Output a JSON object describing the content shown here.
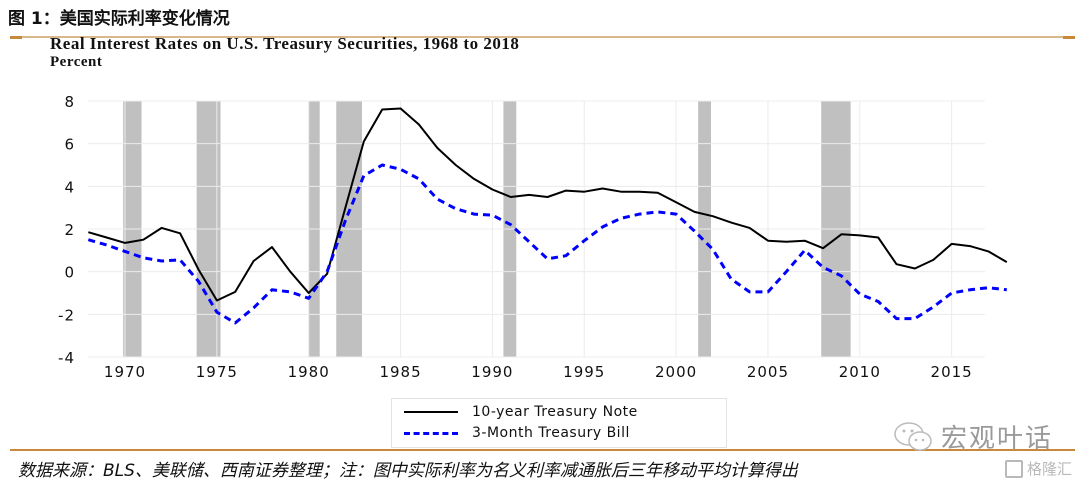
{
  "figure": {
    "title": "图 1：美国实际利率变化情况",
    "source_note": "数据来源：BLS、美联储、西南证券整理；注：图中实际利率为名义利率减通胀后三年移动平均计算得出",
    "watermark": "宏观叶话",
    "brand": "格隆汇",
    "accent_color": "#c8893a"
  },
  "chart_data": {
    "type": "line",
    "title": "Real Interest Rates on U.S. Treasury Securities, 1968 to 2018",
    "ylabel": "Percent",
    "xlabel": "",
    "ylim": [
      -4,
      8
    ],
    "xlim": [
      1967.5,
      2019.5
    ],
    "yticks": [
      8,
      6,
      4,
      2,
      0,
      -2,
      -4
    ],
    "xticks": [
      1970,
      1975,
      1980,
      1985,
      1990,
      1995,
      2000,
      2005,
      2010,
      2015
    ],
    "grid": true,
    "legend_position": "bottom-center",
    "recessions": [
      [
        1969.9,
        1970.9
      ],
      [
        1973.9,
        1975.2
      ],
      [
        1980.0,
        1980.6
      ],
      [
        1981.5,
        1982.9
      ],
      [
        1990.6,
        1991.3
      ],
      [
        2001.2,
        2001.9
      ],
      [
        2007.9,
        2009.5
      ]
    ],
    "x": [
      1968,
      1969,
      1970,
      1971,
      1972,
      1973,
      1974,
      1975,
      1976,
      1977,
      1978,
      1979,
      1980,
      1981,
      1982,
      1983,
      1984,
      1985,
      1986,
      1987,
      1988,
      1989,
      1990,
      1991,
      1992,
      1993,
      1994,
      1995,
      1996,
      1997,
      1998,
      1999,
      2000,
      2001,
      2002,
      2003,
      2004,
      2005,
      2006,
      2007,
      2008,
      2009,
      2010,
      2011,
      2012,
      2013,
      2014,
      2015,
      2016,
      2017,
      2018
    ],
    "series": [
      {
        "name": "10-year Treasury Note",
        "color": "#000000",
        "style": "solid",
        "values": [
          1.85,
          1.6,
          1.35,
          1.5,
          2.05,
          1.8,
          0.1,
          -1.35,
          -0.95,
          0.5,
          1.15,
          0.0,
          -1.0,
          -0.1,
          3.0,
          6.1,
          7.6,
          7.65,
          6.9,
          5.8,
          5.0,
          4.35,
          3.85,
          3.5,
          3.6,
          3.5,
          3.8,
          3.75,
          3.9,
          3.75,
          3.75,
          3.7,
          3.25,
          2.8,
          2.6,
          2.3,
          2.05,
          1.45,
          1.4,
          1.45,
          1.1,
          1.75,
          1.7,
          1.6,
          0.35,
          0.15,
          0.55,
          1.3,
          1.2,
          0.95,
          0.45
        ]
      },
      {
        "name": "3-Month Treasury Bill",
        "color": "#0000ff",
        "style": "dashed",
        "values": [
          1.5,
          1.25,
          0.95,
          0.65,
          0.5,
          0.55,
          -0.45,
          -1.9,
          -2.4,
          -1.7,
          -0.85,
          -0.95,
          -1.25,
          0.0,
          2.4,
          4.5,
          5.0,
          4.8,
          4.35,
          3.4,
          2.95,
          2.7,
          2.65,
          2.2,
          1.4,
          0.6,
          0.75,
          1.45,
          2.1,
          2.5,
          2.7,
          2.8,
          2.7,
          1.9,
          1.05,
          -0.35,
          -0.95,
          -0.95,
          0.0,
          1.0,
          0.2,
          -0.2,
          -1.05,
          -1.4,
          -2.2,
          -2.2,
          -1.65,
          -1.0,
          -0.85,
          -0.75,
          -0.85
        ]
      }
    ]
  }
}
